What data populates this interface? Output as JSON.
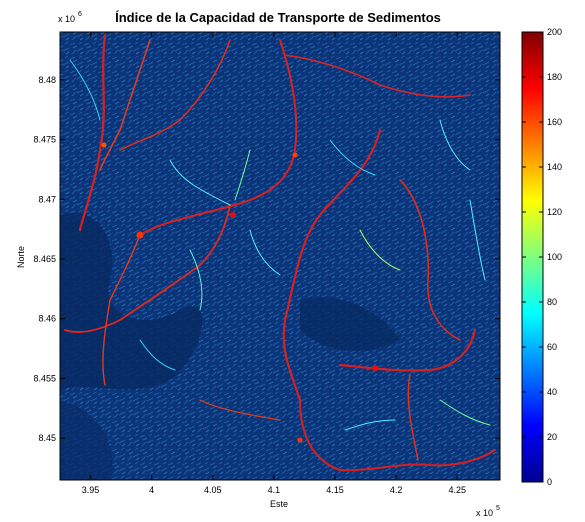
{
  "chart_data": {
    "type": "heatmap",
    "title": "Índice de la Capacidad de Transporte de Sedimentos",
    "xlabel": "Este",
    "ylabel": "Norte",
    "x_multiplier_label": "x 10",
    "x_multiplier_exponent": "5",
    "y_multiplier_label": "x 10",
    "y_multiplier_exponent": "6",
    "xlim": [
      3.925,
      4.285
    ],
    "ylim": [
      8.4465,
      8.484
    ],
    "x_ticks": [
      3.95,
      4.0,
      4.05,
      4.1,
      4.15,
      4.2,
      4.25
    ],
    "x_tick_labels": [
      "3.95",
      "4",
      "4.05",
      "4.1",
      "4.15",
      "4.2",
      "4.25"
    ],
    "y_ticks": [
      8.45,
      8.455,
      8.46,
      8.465,
      8.47,
      8.475,
      8.48
    ],
    "y_tick_labels": [
      "8.45",
      "8.455",
      "8.46",
      "8.465",
      "8.47",
      "8.475",
      "8.48"
    ],
    "colorbar": {
      "colormap": "jet",
      "min": 0,
      "max": 200,
      "ticks": [
        0,
        20,
        40,
        60,
        80,
        100,
        120,
        140,
        160,
        180,
        200
      ],
      "tick_labels": [
        "0",
        "20",
        "40",
        "60",
        "80",
        "100",
        "120",
        "140",
        "160",
        "180",
        "200"
      ]
    },
    "background_color": "#0b2f6e",
    "grid": false
  }
}
